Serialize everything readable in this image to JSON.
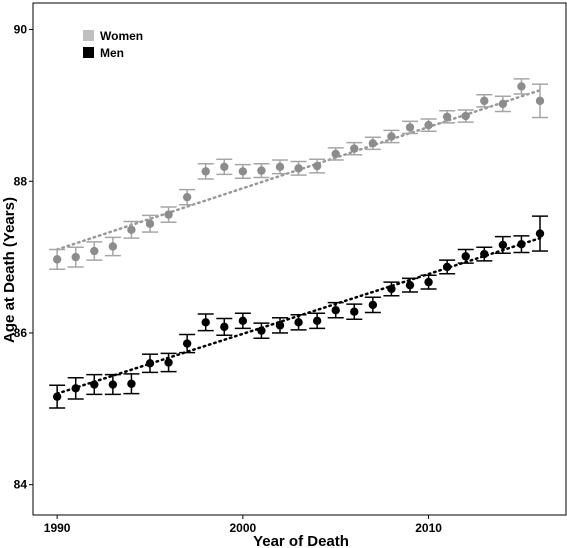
{
  "chart_data": {
    "type": "scatter",
    "title": "",
    "xlabel": "Year of Death",
    "ylabel": "Age at Death (Years)",
    "xlim": [
      1988.7,
      2017.4
    ],
    "ylim": [
      83.6,
      90.35
    ],
    "x_ticks": [
      1990,
      2000,
      2010
    ],
    "x_tick_labels": [
      "1990",
      "2000",
      "2010"
    ],
    "y_ticks": [
      84,
      86,
      88,
      90
    ],
    "y_tick_labels": [
      "84",
      "86",
      "88",
      "90"
    ],
    "grid": false,
    "legend_position": "top-left",
    "series": [
      {
        "name": "Women",
        "color": "#8c8c8c",
        "legend_color": "#bfbfbf",
        "trend_color": "#999999",
        "trend": [
          [
            1990,
            87.1
          ],
          [
            2016,
            89.2
          ]
        ],
        "x": [
          1990,
          1991,
          1992,
          1993,
          1994,
          1995,
          1996,
          1997,
          1998,
          1999,
          2000,
          2001,
          2002,
          2003,
          2004,
          2005,
          2006,
          2007,
          2008,
          2009,
          2010,
          2011,
          2012,
          2013,
          2014,
          2015,
          2016
        ],
        "y": [
          86.97,
          87.0,
          87.08,
          87.14,
          87.36,
          87.44,
          87.56,
          87.79,
          88.13,
          88.19,
          88.13,
          88.14,
          88.19,
          88.17,
          88.2,
          88.36,
          88.43,
          88.5,
          88.59,
          88.71,
          88.74,
          88.85,
          88.86,
          89.06,
          89.02,
          89.25,
          89.06
        ],
        "err": [
          0.13,
          0.13,
          0.12,
          0.12,
          0.11,
          0.11,
          0.1,
          0.1,
          0.1,
          0.1,
          0.09,
          0.09,
          0.09,
          0.09,
          0.09,
          0.08,
          0.08,
          0.08,
          0.08,
          0.08,
          0.08,
          0.08,
          0.08,
          0.08,
          0.1,
          0.1,
          0.22
        ]
      },
      {
        "name": "Men",
        "color": "#000000",
        "legend_color": "#000000",
        "trend_color": "#000000",
        "trend": [
          [
            1990,
            85.2
          ],
          [
            2016,
            87.25
          ]
        ],
        "x": [
          1990,
          1991,
          1992,
          1993,
          1994,
          1995,
          1996,
          1997,
          1998,
          1999,
          2000,
          2001,
          2002,
          2003,
          2004,
          2005,
          2006,
          2007,
          2008,
          2009,
          2010,
          2011,
          2012,
          2013,
          2014,
          2015,
          2016
        ],
        "y": [
          85.16,
          85.27,
          85.32,
          85.32,
          85.33,
          85.6,
          85.61,
          85.86,
          86.14,
          86.08,
          86.16,
          86.03,
          86.1,
          86.14,
          86.16,
          86.3,
          86.28,
          86.37,
          86.58,
          86.63,
          86.67,
          86.87,
          87.01,
          87.04,
          87.16,
          87.17,
          87.31
        ],
        "err": [
          0.15,
          0.14,
          0.13,
          0.13,
          0.13,
          0.12,
          0.12,
          0.12,
          0.11,
          0.11,
          0.1,
          0.1,
          0.1,
          0.1,
          0.1,
          0.1,
          0.1,
          0.1,
          0.09,
          0.09,
          0.09,
          0.09,
          0.09,
          0.09,
          0.11,
          0.11,
          0.23
        ]
      }
    ]
  }
}
